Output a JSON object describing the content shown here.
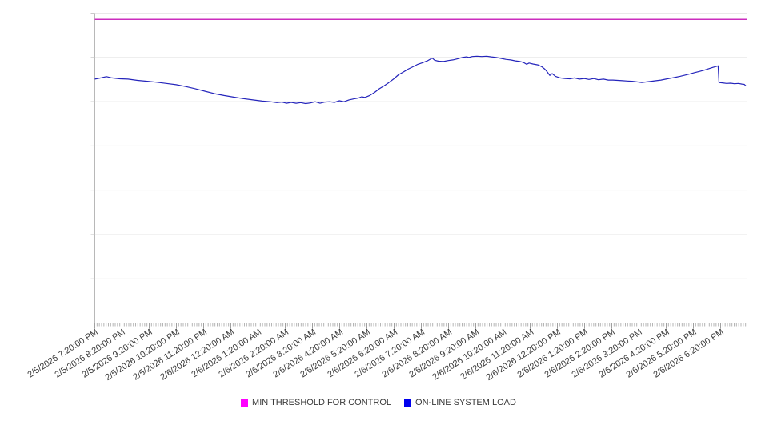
{
  "legend": {
    "items": [
      {
        "label": "MIN THRESHOLD FOR CONTROL",
        "color": "#ff00ff"
      },
      {
        "label": "ON-LINE SYSTEM LOAD",
        "color": "#0000ee"
      }
    ]
  },
  "chart_data": {
    "type": "line",
    "title": "",
    "xlabel": "",
    "ylabel": "",
    "grid": true,
    "legend_position": "bottom-center",
    "y_axis": {
      "labels_visible": false,
      "gridline_divisions": 7,
      "note": "y-axis has tick marks and gridlines but no value labels; series values below are fractions of plot height (0 = bottom axis, 1 = top gridline area)"
    },
    "x_axis": {
      "tick_interval": "1 hour",
      "minor_ticks_per_hour": 12,
      "minor_tick_interval": "5 minutes",
      "range_hours": [
        0,
        23.95
      ],
      "tick_labels": [
        "2/5/2026 7:20:00 PM",
        "2/5/2026 8:20:00 PM",
        "2/5/2026 9:20:00 PM",
        "2/5/2026 10:20:00 PM",
        "2/5/2026 11:20:00 PM",
        "2/6/2026 12:20:00 AM",
        "2/6/2026 1:20:00 AM",
        "2/6/2026 2:20:00 AM",
        "2/6/2026 3:20:00 AM",
        "2/6/2026 4:20:00 AM",
        "2/6/2026 5:20:00 AM",
        "2/6/2026 6:20:00 AM",
        "2/6/2026 7:20:00 AM",
        "2/6/2026 8:20:00 AM",
        "2/6/2026 9:20:00 AM",
        "2/6/2026 10:20:00 AM",
        "2/6/2026 11:20:00 AM",
        "2/6/2026 12:20:00 PM",
        "2/6/2026 1:20:00 PM",
        "2/6/2026 2:20:00 PM",
        "2/6/2026 3:20:00 PM",
        "2/6/2026 4:20:00 PM",
        "2/6/2026 5:20:00 PM",
        "2/6/2026 6:20:00 PM"
      ]
    },
    "series": [
      {
        "name": "MIN THRESHOLD FOR CONTROL",
        "style": "horizontal-threshold-line",
        "color": "#cb2dbe",
        "value": 0.98
      },
      {
        "name": "ON-LINE SYSTEM LOAD",
        "style": "line",
        "color": "#2424bb",
        "points": [
          [
            0.0,
            0.787
          ],
          [
            0.22,
            0.791
          ],
          [
            0.43,
            0.795
          ],
          [
            0.63,
            0.791
          ],
          [
            0.93,
            0.788
          ],
          [
            1.22,
            0.787
          ],
          [
            1.57,
            0.783
          ],
          [
            1.93,
            0.78
          ],
          [
            2.28,
            0.777
          ],
          [
            2.63,
            0.773
          ],
          [
            2.99,
            0.769
          ],
          [
            3.34,
            0.763
          ],
          [
            3.69,
            0.756
          ],
          [
            4.04,
            0.748
          ],
          [
            4.4,
            0.74
          ],
          [
            4.75,
            0.734
          ],
          [
            5.1,
            0.729
          ],
          [
            5.46,
            0.724
          ],
          [
            5.81,
            0.72
          ],
          [
            6.16,
            0.716
          ],
          [
            6.46,
            0.714
          ],
          [
            6.69,
            0.711
          ],
          [
            6.87,
            0.713
          ],
          [
            7.04,
            0.709
          ],
          [
            7.22,
            0.712
          ],
          [
            7.4,
            0.709
          ],
          [
            7.57,
            0.711
          ],
          [
            7.75,
            0.708
          ],
          [
            7.93,
            0.71
          ],
          [
            8.1,
            0.714
          ],
          [
            8.28,
            0.709
          ],
          [
            8.46,
            0.713
          ],
          [
            8.63,
            0.714
          ],
          [
            8.81,
            0.712
          ],
          [
            8.99,
            0.717
          ],
          [
            9.16,
            0.714
          ],
          [
            9.34,
            0.72
          ],
          [
            9.51,
            0.723
          ],
          [
            9.69,
            0.726
          ],
          [
            9.81,
            0.73
          ],
          [
            9.93,
            0.728
          ],
          [
            10.1,
            0.734
          ],
          [
            10.28,
            0.744
          ],
          [
            10.46,
            0.756
          ],
          [
            10.63,
            0.765
          ],
          [
            10.81,
            0.776
          ],
          [
            10.99,
            0.788
          ],
          [
            11.16,
            0.801
          ],
          [
            11.34,
            0.81
          ],
          [
            11.51,
            0.819
          ],
          [
            11.69,
            0.827
          ],
          [
            11.87,
            0.835
          ],
          [
            12.04,
            0.84
          ],
          [
            12.22,
            0.846
          ],
          [
            12.4,
            0.855
          ],
          [
            12.49,
            0.848
          ],
          [
            12.63,
            0.845
          ],
          [
            12.81,
            0.844
          ],
          [
            12.99,
            0.847
          ],
          [
            13.16,
            0.849
          ],
          [
            13.34,
            0.853
          ],
          [
            13.51,
            0.857
          ],
          [
            13.66,
            0.859
          ],
          [
            13.75,
            0.857
          ],
          [
            13.87,
            0.86
          ],
          [
            14.04,
            0.861
          ],
          [
            14.22,
            0.86
          ],
          [
            14.4,
            0.861
          ],
          [
            14.57,
            0.859
          ],
          [
            14.75,
            0.857
          ],
          [
            14.93,
            0.854
          ],
          [
            15.1,
            0.851
          ],
          [
            15.28,
            0.849
          ],
          [
            15.46,
            0.846
          ],
          [
            15.63,
            0.844
          ],
          [
            15.75,
            0.841
          ],
          [
            15.87,
            0.835
          ],
          [
            15.96,
            0.839
          ],
          [
            16.1,
            0.836
          ],
          [
            16.28,
            0.833
          ],
          [
            16.43,
            0.827
          ],
          [
            16.54,
            0.819
          ],
          [
            16.63,
            0.81
          ],
          [
            16.72,
            0.799
          ],
          [
            16.81,
            0.805
          ],
          [
            16.93,
            0.796
          ],
          [
            17.1,
            0.791
          ],
          [
            17.28,
            0.789
          ],
          [
            17.46,
            0.788
          ],
          [
            17.63,
            0.791
          ],
          [
            17.81,
            0.787
          ],
          [
            17.99,
            0.789
          ],
          [
            18.16,
            0.786
          ],
          [
            18.34,
            0.789
          ],
          [
            18.51,
            0.785
          ],
          [
            18.69,
            0.787
          ],
          [
            18.87,
            0.784
          ],
          [
            19.04,
            0.784
          ],
          [
            19.22,
            0.783
          ],
          [
            19.4,
            0.782
          ],
          [
            19.57,
            0.781
          ],
          [
            19.75,
            0.78
          ],
          [
            19.93,
            0.778
          ],
          [
            20.1,
            0.776
          ],
          [
            20.28,
            0.778
          ],
          [
            20.46,
            0.78
          ],
          [
            20.63,
            0.782
          ],
          [
            20.81,
            0.784
          ],
          [
            20.99,
            0.787
          ],
          [
            21.16,
            0.79
          ],
          [
            21.34,
            0.793
          ],
          [
            21.51,
            0.796
          ],
          [
            21.69,
            0.8
          ],
          [
            21.87,
            0.804
          ],
          [
            22.04,
            0.808
          ],
          [
            22.22,
            0.812
          ],
          [
            22.4,
            0.816
          ],
          [
            22.57,
            0.821
          ],
          [
            22.72,
            0.825
          ],
          [
            22.84,
            0.828
          ],
          [
            22.91,
            0.83
          ],
          [
            22.94,
            0.776
          ],
          [
            23.07,
            0.775
          ],
          [
            23.22,
            0.773
          ],
          [
            23.37,
            0.774
          ],
          [
            23.51,
            0.772
          ],
          [
            23.66,
            0.773
          ],
          [
            23.78,
            0.771
          ],
          [
            23.87,
            0.77
          ],
          [
            23.93,
            0.765
          ]
        ]
      }
    ],
    "colors": {
      "gridline": "#e9e9e9",
      "axis": "#b8b8b8",
      "y_tick": "#c9c9c9",
      "x_minor_tick": "#b5b5b5",
      "x_major_tick": "#a0a0a0",
      "label_text": "#3a3a3a"
    }
  }
}
